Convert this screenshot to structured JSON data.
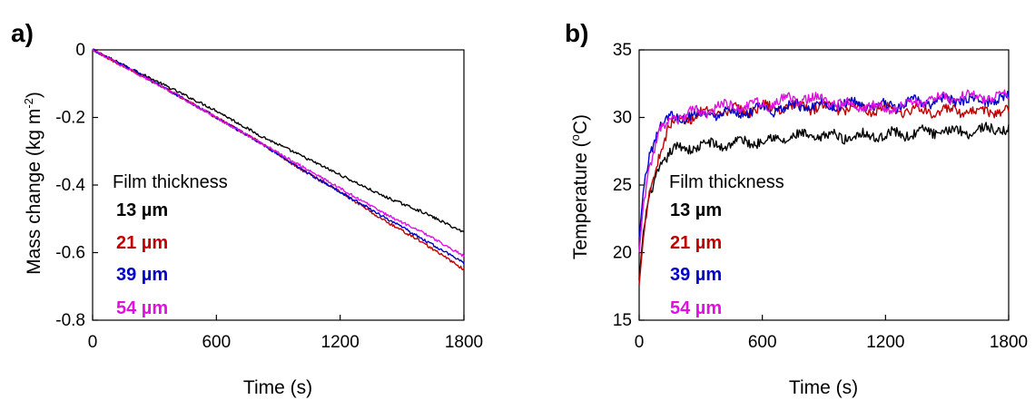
{
  "colors": {
    "13": "#000000",
    "21": "#c00000",
    "39": "#0000c8",
    "54": "#e010e0"
  },
  "chart_data": [
    {
      "panel": "a)",
      "type": "line",
      "xlabel": "Time (s)",
      "ylabel_main": "Mass change (kg m",
      "ylabel_sup": "-2",
      "ylabel_close": ")",
      "xlim": [
        0,
        1800
      ],
      "ylim": [
        -0.8,
        0
      ],
      "xticks": [
        0,
        600,
        1200,
        1800
      ],
      "yticks": [
        0,
        -0.2,
        -0.4,
        -0.6,
        -0.8
      ],
      "ytick_labels": [
        "0",
        "-0.2",
        "-0.4",
        "-0.6",
        "-0.8"
      ],
      "legend_title": "Film thickness",
      "legend_position": "left",
      "x": [
        0,
        200,
        400,
        600,
        800,
        1000,
        1200,
        1400,
        1600,
        1800
      ],
      "series": [
        {
          "name": "13 µm",
          "color_key": "13",
          "values": [
            0,
            -0.06,
            -0.12,
            -0.18,
            -0.25,
            -0.31,
            -0.37,
            -0.43,
            -0.48,
            -0.54
          ]
        },
        {
          "name": "21 µm",
          "color_key": "21",
          "values": [
            0,
            -0.065,
            -0.13,
            -0.2,
            -0.27,
            -0.35,
            -0.42,
            -0.5,
            -0.57,
            -0.65
          ]
        },
        {
          "name": "39 µm",
          "color_key": "39",
          "values": [
            0,
            -0.06,
            -0.13,
            -0.2,
            -0.27,
            -0.35,
            -0.42,
            -0.49,
            -0.56,
            -0.63
          ]
        },
        {
          "name": "54 µm",
          "color_key": "54",
          "values": [
            0,
            -0.065,
            -0.13,
            -0.2,
            -0.27,
            -0.34,
            -0.41,
            -0.48,
            -0.54,
            -0.61
          ]
        }
      ]
    },
    {
      "panel": "b)",
      "type": "line",
      "xlabel": "Time (s)",
      "ylabel_main": "Temperature (",
      "ylabel_sup": "o",
      "ylabel_close": "C)",
      "xlim": [
        0,
        1800
      ],
      "ylim": [
        15,
        35
      ],
      "xticks": [
        0,
        600,
        1200,
        1800
      ],
      "yticks": [
        15,
        20,
        25,
        30,
        35
      ],
      "ytick_labels": [
        "15",
        "20",
        "25",
        "30",
        "35"
      ],
      "legend_title": "Film thickness",
      "legend_position": "bottom-left",
      "x": [
        0,
        20,
        50,
        100,
        150,
        200,
        300,
        400,
        600,
        800,
        1000,
        1200,
        1400,
        1600,
        1800
      ],
      "series": [
        {
          "name": "13 µm",
          "color_key": "13",
          "values": [
            18,
            21.5,
            24,
            26.5,
            27.4,
            27.7,
            27.9,
            28.0,
            28.3,
            28.6,
            28.6,
            28.7,
            28.9,
            29.0,
            29.2
          ]
        },
        {
          "name": "21 µm",
          "color_key": "21",
          "values": [
            17.6,
            21,
            24.5,
            27.5,
            29.3,
            29.9,
            30.2,
            30.4,
            30.7,
            30.8,
            30.7,
            30.6,
            30.5,
            30.4,
            30.5
          ]
        },
        {
          "name": "39 µm",
          "color_key": "39",
          "values": [
            21,
            24.5,
            27.5,
            29.3,
            30.0,
            30.1,
            30.2,
            30.4,
            30.5,
            30.9,
            31.0,
            30.8,
            31.2,
            31.3,
            31.4
          ]
        },
        {
          "name": "54 µm",
          "color_key": "54",
          "values": [
            20,
            23.5,
            26.5,
            28.8,
            29.8,
            30.1,
            30.4,
            30.8,
            30.9,
            31.5,
            31.0,
            30.7,
            31.3,
            31.6,
            31.5
          ]
        }
      ]
    }
  ]
}
